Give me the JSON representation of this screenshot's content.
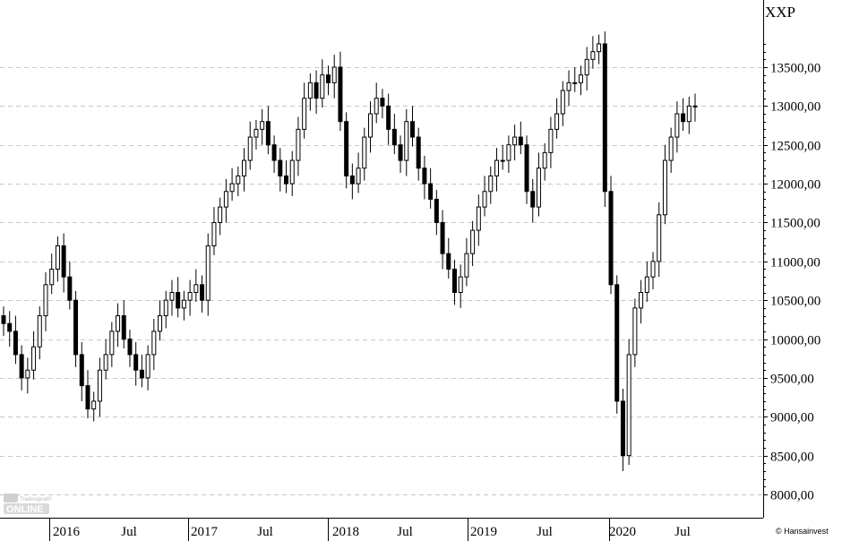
{
  "chart_data": {
    "type": "candlestick",
    "symbol": "XXP",
    "credit": "© Hansainvest",
    "watermark": "Tradesignal Online",
    "x_tick_labels": [
      "2016",
      "Jul",
      "2017",
      "Jul",
      "2018",
      "Jul",
      "2019",
      "Jul",
      "2020",
      "Jul"
    ],
    "y_tick_labels": [
      "8000,00",
      "8500,00",
      "9000,00",
      "9500,00",
      "10000,00",
      "10500,00",
      "11000,00",
      "11500,00",
      "12000,00",
      "12500,00",
      "13000,00",
      "13500,00"
    ],
    "y_ticks": [
      8000,
      8500,
      9000,
      9500,
      10000,
      10500,
      11000,
      11500,
      12000,
      12500,
      13000,
      13500
    ],
    "ylim": [
      7800,
      14000
    ],
    "y_axis_side": "right",
    "grid": "horizontal dashed",
    "series": [
      {
        "values": [
          10200,
          10100,
          9800,
          9500,
          9600,
          9900,
          10300,
          10700,
          10900,
          11200,
          10800,
          10500,
          9800,
          9400,
          9100,
          9200,
          9600,
          9800,
          10100,
          10300,
          10000,
          9800,
          9600,
          9500,
          9800,
          10100,
          10300,
          10500,
          10600,
          10400,
          10500,
          10600,
          10700,
          10500,
          11200,
          11500,
          11700,
          11900,
          12000,
          12100,
          12300,
          12600,
          12700,
          12800,
          12500,
          12300,
          12100,
          12000,
          12300,
          12700,
          13100,
          13300,
          13100,
          13400,
          13300,
          13500,
          12800,
          12100,
          12000,
          12200,
          12600,
          12900,
          13100,
          13000,
          12700,
          12500,
          12300,
          12800,
          12600,
          12200,
          12000,
          11800,
          11500,
          11100,
          10900,
          10600,
          10800,
          11100,
          11400,
          11700,
          11900,
          12100,
          12300,
          12300,
          12500,
          12600,
          12500,
          11900,
          11700,
          12200,
          12400,
          12700,
          12900,
          13200,
          13300,
          13300,
          13400,
          13600,
          13700,
          13800,
          11900,
          10700,
          9200,
          8500,
          9800,
          10400,
          10600,
          10800,
          11000,
          11600,
          12300,
          12600,
          12900,
          12800,
          13000,
          13000
        ],
        "open": [
          10300,
          10200,
          10100,
          9800,
          9500,
          9600,
          9900,
          10300,
          10700,
          10900,
          11200,
          10800,
          10500,
          9800,
          9400,
          9100,
          9200,
          9600,
          9800,
          10100,
          10300,
          10000,
          9800,
          9600,
          9500,
          9800,
          10100,
          10300,
          10500,
          10600,
          10400,
          10500,
          10600,
          10700,
          10500,
          11200,
          11500,
          11700,
          11900,
          12000,
          12100,
          12300,
          12600,
          12700,
          12800,
          12500,
          12300,
          12100,
          12000,
          12300,
          12700,
          13100,
          13300,
          13100,
          13400,
          13300,
          13500,
          12800,
          12100,
          12000,
          12200,
          12600,
          12900,
          13100,
          13000,
          12700,
          12500,
          12300,
          12800,
          12600,
          12200,
          12000,
          11800,
          11500,
          11100,
          10900,
          10600,
          10800,
          11100,
          11400,
          11700,
          11900,
          12100,
          12300,
          12300,
          12500,
          12600,
          12500,
          11900,
          11700,
          12200,
          12400,
          12700,
          12900,
          13200,
          13300,
          13300,
          13400,
          13600,
          13700,
          13800,
          11900,
          10700,
          9200,
          8500,
          9800,
          10400,
          10600,
          10800,
          11000,
          11600,
          12300,
          12600,
          12900,
          12800,
          13000
        ]
      }
    ]
  }
}
